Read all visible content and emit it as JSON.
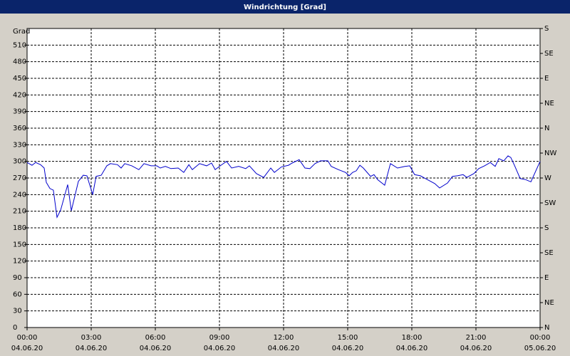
{
  "chart_data": {
    "type": "line",
    "title": "Windrichtung [Grad]",
    "ylabel": "Grad",
    "color": "#0000cc",
    "grid": true,
    "xlim": [
      0,
      24
    ],
    "ylim": [
      0,
      540
    ],
    "y2lim": [
      0,
      540
    ],
    "xticks": [
      {
        "value": 0,
        "label": "00:00"
      },
      {
        "value": 3,
        "label": "03:00"
      },
      {
        "value": 6,
        "label": "06:00"
      },
      {
        "value": 9,
        "label": "09:00"
      },
      {
        "value": 12,
        "label": "12:00"
      },
      {
        "value": 15,
        "label": "15:00"
      },
      {
        "value": 18,
        "label": "18:00"
      },
      {
        "value": 21,
        "label": "21:00"
      },
      {
        "value": 24,
        "label": "00:00"
      }
    ],
    "xtick_dates": [
      "04.06.20",
      "04.06.20",
      "04.06.20",
      "04.06.20",
      "04.06.20",
      "04.06.20",
      "04.06.20",
      "04.06.20",
      "05.06.20"
    ],
    "yticks": [
      0,
      30,
      60,
      90,
      120,
      150,
      180,
      210,
      240,
      270,
      300,
      330,
      360,
      390,
      420,
      450,
      480,
      510
    ],
    "y2ticks": [
      {
        "value": 0,
        "label": "N"
      },
      {
        "value": 45,
        "label": "NE"
      },
      {
        "value": 90,
        "label": "E"
      },
      {
        "value": 135,
        "label": "SE"
      },
      {
        "value": 180,
        "label": "S"
      },
      {
        "value": 225,
        "label": "SW"
      },
      {
        "value": 270,
        "label": "W"
      },
      {
        "value": 315,
        "label": "NW"
      },
      {
        "value": 360,
        "label": "N"
      },
      {
        "value": 405,
        "label": "NE"
      },
      {
        "value": 450,
        "label": "E"
      },
      {
        "value": 495,
        "label": "SE"
      },
      {
        "value": 540,
        "label": "S"
      }
    ],
    "x": [
      0,
      0.23,
      0.4,
      0.63,
      0.8,
      0.9,
      1.07,
      1.23,
      1.4,
      1.57,
      1.9,
      2.07,
      2.4,
      2.63,
      2.8,
      3.07,
      3.23,
      3.47,
      3.73,
      3.9,
      4.23,
      4.4,
      4.57,
      4.9,
      5.23,
      5.47,
      5.8,
      6.07,
      6.23,
      6.47,
      6.73,
      7.07,
      7.33,
      7.57,
      7.73,
      8.07,
      8.4,
      8.63,
      8.8,
      9.07,
      9.33,
      9.57,
      9.9,
      10.23,
      10.4,
      10.73,
      11.07,
      11.4,
      11.57,
      11.9,
      12.23,
      12.4,
      12.73,
      13,
      13.23,
      13.47,
      13.73,
      14.07,
      14.23,
      14.57,
      14.9,
      15.07,
      15.23,
      15.4,
      15.57,
      15.73,
      16.07,
      16.23,
      16.4,
      16.73,
      17,
      17.33,
      17.67,
      17.9,
      18.13,
      18.4,
      18.73,
      19.07,
      19.3,
      19.67,
      19.9,
      20.13,
      20.4,
      20.57,
      20.9,
      21.13,
      21.4,
      21.67,
      21.9,
      22.07,
      22.3,
      22.5,
      22.63,
      22.8,
      23.07,
      23.33,
      23.57,
      24
    ],
    "values": [
      298,
      293,
      298,
      294,
      288,
      262,
      251,
      248,
      199,
      212,
      258,
      211,
      264,
      275,
      274,
      240,
      273,
      275,
      292,
      296,
      294,
      288,
      296,
      292,
      285,
      296,
      292,
      292,
      288,
      291,
      287,
      288,
      280,
      294,
      285,
      296,
      292,
      297,
      285,
      293,
      300,
      288,
      291,
      287,
      292,
      278,
      271,
      288,
      280,
      290,
      293,
      297,
      303,
      288,
      287,
      296,
      301,
      301,
      291,
      285,
      280,
      274,
      280,
      283,
      293,
      288,
      273,
      276,
      267,
      257,
      296,
      288,
      291,
      292,
      276,
      274,
      267,
      260,
      252,
      261,
      273,
      274,
      276,
      271,
      278,
      287,
      292,
      298,
      291,
      305,
      301,
      310,
      307,
      293,
      269,
      267,
      263,
      300
    ]
  }
}
